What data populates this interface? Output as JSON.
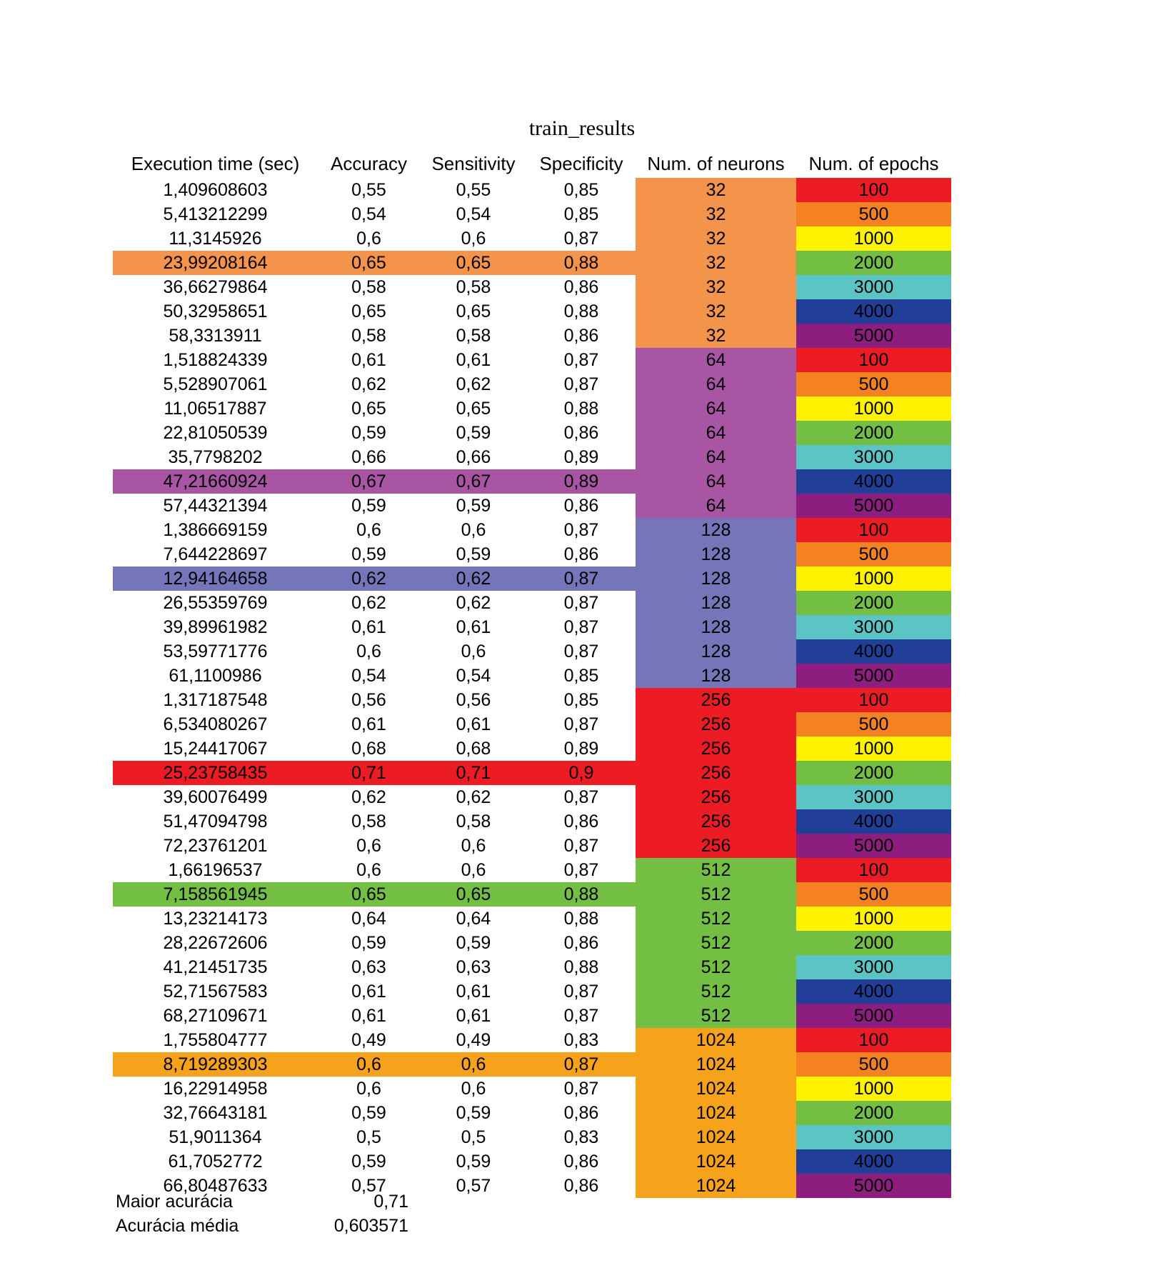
{
  "title": "train_results",
  "headers": [
    "Execution time (sec)",
    "Accuracy",
    "Sensitivity",
    "Specificity",
    "Num. of neurons",
    "Num. of epochs"
  ],
  "neuron_colors": {
    "32": "#f4934a",
    "64": "#a855a3",
    "128": "#7576b9",
    "256": "#ed1c24",
    "512": "#72bf44",
    "1024": "#f7a21b"
  },
  "epoch_colors": {
    "100": "#ed1c24",
    "500": "#f58220",
    "1000": "#fff200",
    "2000": "#72bf44",
    "3000": "#5ac5c4",
    "4000": "#213f99",
    "5000": "#8d1d7e"
  },
  "rows": [
    {
      "time": "1,409608603",
      "accuracy": "0,55",
      "sensitivity": "0,55",
      "specificity": "0,85",
      "neurons": "32",
      "epochs": "100",
      "highlight": false
    },
    {
      "time": "5,413212299",
      "accuracy": "0,54",
      "sensitivity": "0,54",
      "specificity": "0,85",
      "neurons": "32",
      "epochs": "500",
      "highlight": false
    },
    {
      "time": "11,3145926",
      "accuracy": "0,6",
      "sensitivity": "0,6",
      "specificity": "0,87",
      "neurons": "32",
      "epochs": "1000",
      "highlight": false
    },
    {
      "time": "23,99208164",
      "accuracy": "0,65",
      "sensitivity": "0,65",
      "specificity": "0,88",
      "neurons": "32",
      "epochs": "2000",
      "highlight": true
    },
    {
      "time": "36,66279864",
      "accuracy": "0,58",
      "sensitivity": "0,58",
      "specificity": "0,86",
      "neurons": "32",
      "epochs": "3000",
      "highlight": false
    },
    {
      "time": "50,32958651",
      "accuracy": "0,65",
      "sensitivity": "0,65",
      "specificity": "0,88",
      "neurons": "32",
      "epochs": "4000",
      "highlight": false
    },
    {
      "time": "58,3313911",
      "accuracy": "0,58",
      "sensitivity": "0,58",
      "specificity": "0,86",
      "neurons": "32",
      "epochs": "5000",
      "highlight": false
    },
    {
      "time": "1,518824339",
      "accuracy": "0,61",
      "sensitivity": "0,61",
      "specificity": "0,87",
      "neurons": "64",
      "epochs": "100",
      "highlight": false
    },
    {
      "time": "5,528907061",
      "accuracy": "0,62",
      "sensitivity": "0,62",
      "specificity": "0,87",
      "neurons": "64",
      "epochs": "500",
      "highlight": false
    },
    {
      "time": "11,06517887",
      "accuracy": "0,65",
      "sensitivity": "0,65",
      "specificity": "0,88",
      "neurons": "64",
      "epochs": "1000",
      "highlight": false
    },
    {
      "time": "22,81050539",
      "accuracy": "0,59",
      "sensitivity": "0,59",
      "specificity": "0,86",
      "neurons": "64",
      "epochs": "2000",
      "highlight": false
    },
    {
      "time": "35,7798202",
      "accuracy": "0,66",
      "sensitivity": "0,66",
      "specificity": "0,89",
      "neurons": "64",
      "epochs": "3000",
      "highlight": false
    },
    {
      "time": "47,21660924",
      "accuracy": "0,67",
      "sensitivity": "0,67",
      "specificity": "0,89",
      "neurons": "64",
      "epochs": "4000",
      "highlight": true
    },
    {
      "time": "57,44321394",
      "accuracy": "0,59",
      "sensitivity": "0,59",
      "specificity": "0,86",
      "neurons": "64",
      "epochs": "5000",
      "highlight": false
    },
    {
      "time": "1,386669159",
      "accuracy": "0,6",
      "sensitivity": "0,6",
      "specificity": "0,87",
      "neurons": "128",
      "epochs": "100",
      "highlight": false
    },
    {
      "time": "7,644228697",
      "accuracy": "0,59",
      "sensitivity": "0,59",
      "specificity": "0,86",
      "neurons": "128",
      "epochs": "500",
      "highlight": false
    },
    {
      "time": "12,94164658",
      "accuracy": "0,62",
      "sensitivity": "0,62",
      "specificity": "0,87",
      "neurons": "128",
      "epochs": "1000",
      "highlight": true
    },
    {
      "time": "26,55359769",
      "accuracy": "0,62",
      "sensitivity": "0,62",
      "specificity": "0,87",
      "neurons": "128",
      "epochs": "2000",
      "highlight": false
    },
    {
      "time": "39,89961982",
      "accuracy": "0,61",
      "sensitivity": "0,61",
      "specificity": "0,87",
      "neurons": "128",
      "epochs": "3000",
      "highlight": false
    },
    {
      "time": "53,59771776",
      "accuracy": "0,6",
      "sensitivity": "0,6",
      "specificity": "0,87",
      "neurons": "128",
      "epochs": "4000",
      "highlight": false
    },
    {
      "time": "61,1100986",
      "accuracy": "0,54",
      "sensitivity": "0,54",
      "specificity": "0,85",
      "neurons": "128",
      "epochs": "5000",
      "highlight": false
    },
    {
      "time": "1,317187548",
      "accuracy": "0,56",
      "sensitivity": "0,56",
      "specificity": "0,85",
      "neurons": "256",
      "epochs": "100",
      "highlight": false
    },
    {
      "time": "6,534080267",
      "accuracy": "0,61",
      "sensitivity": "0,61",
      "specificity": "0,87",
      "neurons": "256",
      "epochs": "500",
      "highlight": false
    },
    {
      "time": "15,24417067",
      "accuracy": "0,68",
      "sensitivity": "0,68",
      "specificity": "0,89",
      "neurons": "256",
      "epochs": "1000",
      "highlight": false
    },
    {
      "time": "25,23758435",
      "accuracy": "0,71",
      "sensitivity": "0,71",
      "specificity": "0,9",
      "neurons": "256",
      "epochs": "2000",
      "highlight": true
    },
    {
      "time": "39,60076499",
      "accuracy": "0,62",
      "sensitivity": "0,62",
      "specificity": "0,87",
      "neurons": "256",
      "epochs": "3000",
      "highlight": false
    },
    {
      "time": "51,47094798",
      "accuracy": "0,58",
      "sensitivity": "0,58",
      "specificity": "0,86",
      "neurons": "256",
      "epochs": "4000",
      "highlight": false
    },
    {
      "time": "72,23761201",
      "accuracy": "0,6",
      "sensitivity": "0,6",
      "specificity": "0,87",
      "neurons": "256",
      "epochs": "5000",
      "highlight": false
    },
    {
      "time": "1,66196537",
      "accuracy": "0,6",
      "sensitivity": "0,6",
      "specificity": "0,87",
      "neurons": "512",
      "epochs": "100",
      "highlight": false
    },
    {
      "time": "7,158561945",
      "accuracy": "0,65",
      "sensitivity": "0,65",
      "specificity": "0,88",
      "neurons": "512",
      "epochs": "500",
      "highlight": true
    },
    {
      "time": "13,23214173",
      "accuracy": "0,64",
      "sensitivity": "0,64",
      "specificity": "0,88",
      "neurons": "512",
      "epochs": "1000",
      "highlight": false
    },
    {
      "time": "28,22672606",
      "accuracy": "0,59",
      "sensitivity": "0,59",
      "specificity": "0,86",
      "neurons": "512",
      "epochs": "2000",
      "highlight": false
    },
    {
      "time": "41,21451735",
      "accuracy": "0,63",
      "sensitivity": "0,63",
      "specificity": "0,88",
      "neurons": "512",
      "epochs": "3000",
      "highlight": false
    },
    {
      "time": "52,71567583",
      "accuracy": "0,61",
      "sensitivity": "0,61",
      "specificity": "0,87",
      "neurons": "512",
      "epochs": "4000",
      "highlight": false
    },
    {
      "time": "68,27109671",
      "accuracy": "0,61",
      "sensitivity": "0,61",
      "specificity": "0,87",
      "neurons": "512",
      "epochs": "5000",
      "highlight": false
    },
    {
      "time": "1,755804777",
      "accuracy": "0,49",
      "sensitivity": "0,49",
      "specificity": "0,83",
      "neurons": "1024",
      "epochs": "100",
      "highlight": false
    },
    {
      "time": "8,719289303",
      "accuracy": "0,6",
      "sensitivity": "0,6",
      "specificity": "0,87",
      "neurons": "1024",
      "epochs": "500",
      "highlight": true
    },
    {
      "time": "16,22914958",
      "accuracy": "0,6",
      "sensitivity": "0,6",
      "specificity": "0,87",
      "neurons": "1024",
      "epochs": "1000",
      "highlight": false
    },
    {
      "time": "32,76643181",
      "accuracy": "0,59",
      "sensitivity": "0,59",
      "specificity": "0,86",
      "neurons": "1024",
      "epochs": "2000",
      "highlight": false
    },
    {
      "time": "51,9011364",
      "accuracy": "0,5",
      "sensitivity": "0,5",
      "specificity": "0,83",
      "neurons": "1024",
      "epochs": "3000",
      "highlight": false
    },
    {
      "time": "61,7052772",
      "accuracy": "0,59",
      "sensitivity": "0,59",
      "specificity": "0,86",
      "neurons": "1024",
      "epochs": "4000",
      "highlight": false
    },
    {
      "time": "66,80487633",
      "accuracy": "0,57",
      "sensitivity": "0,57",
      "specificity": "0,86",
      "neurons": "1024",
      "epochs": "5000",
      "highlight": false
    }
  ],
  "summary": {
    "max_label": "Maior acurácia",
    "max_value": "0,71",
    "mean_label": "Acurácia média",
    "mean_value": "0,603571"
  }
}
